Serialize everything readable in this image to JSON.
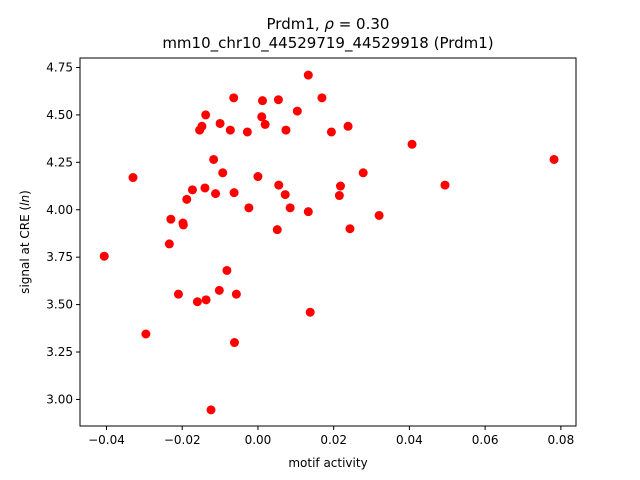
{
  "chart_data": {
    "type": "scatter",
    "title_line1_prefix": "Prdm1, ",
    "title_rho_symbol": "ρ",
    "title_rho_suffix": " = 0.30",
    "title_line2": "mm10_chr10_44529719_44529918 (Prdm1)",
    "xlabel": "motif activity",
    "ylabel_prefix": "signal at CRE (",
    "ylabel_italic": "ln",
    "ylabel_suffix": ")",
    "xlim": [
      -0.047,
      0.084
    ],
    "ylim": [
      2.86,
      4.8
    ],
    "xticks": [
      -0.04,
      -0.02,
      0.0,
      0.02,
      0.04,
      0.06,
      0.08
    ],
    "xtick_labels": [
      "−0.04",
      "−0.02",
      "0.00",
      "0.02",
      "0.04",
      "0.06",
      "0.08"
    ],
    "yticks": [
      3.0,
      3.25,
      3.5,
      3.75,
      4.0,
      4.25,
      4.5,
      4.75
    ],
    "ytick_labels": [
      "3.00",
      "3.25",
      "3.50",
      "3.75",
      "4.00",
      "4.25",
      "4.50",
      "4.75"
    ],
    "marker_color": "#ff0000",
    "grid": false,
    "points": [
      {
        "x": -0.0406,
        "y": 3.755
      },
      {
        "x": -0.033,
        "y": 4.17
      },
      {
        "x": -0.0296,
        "y": 3.345
      },
      {
        "x": -0.0234,
        "y": 3.82
      },
      {
        "x": -0.023,
        "y": 3.95
      },
      {
        "x": -0.021,
        "y": 3.555
      },
      {
        "x": -0.0198,
        "y": 3.93
      },
      {
        "x": -0.0197,
        "y": 3.92
      },
      {
        "x": -0.0188,
        "y": 4.055
      },
      {
        "x": -0.0173,
        "y": 4.105
      },
      {
        "x": -0.016,
        "y": 3.515
      },
      {
        "x": -0.0154,
        "y": 4.42
      },
      {
        "x": -0.0148,
        "y": 4.44
      },
      {
        "x": -0.0138,
        "y": 4.5
      },
      {
        "x": -0.014,
        "y": 4.115
      },
      {
        "x": -0.0137,
        "y": 3.525
      },
      {
        "x": -0.0124,
        "y": 2.945
      },
      {
        "x": -0.0117,
        "y": 4.265
      },
      {
        "x": -0.0112,
        "y": 4.085
      },
      {
        "x": -0.0102,
        "y": 3.575
      },
      {
        "x": -0.01,
        "y": 4.455
      },
      {
        "x": -0.0093,
        "y": 4.195
      },
      {
        "x": -0.0082,
        "y": 3.68
      },
      {
        "x": -0.0073,
        "y": 4.42
      },
      {
        "x": -0.0064,
        "y": 4.59
      },
      {
        "x": -0.0063,
        "y": 4.09
      },
      {
        "x": -0.0062,
        "y": 3.3
      },
      {
        "x": -0.0057,
        "y": 3.555
      },
      {
        "x": -0.0028,
        "y": 4.41
      },
      {
        "x": -0.0024,
        "y": 4.01
      },
      {
        "x": 0.0,
        "y": 4.175
      },
      {
        "x": 0.001,
        "y": 4.49
      },
      {
        "x": 0.0012,
        "y": 4.575
      },
      {
        "x": 0.0019,
        "y": 4.45
      },
      {
        "x": 0.0051,
        "y": 3.895
      },
      {
        "x": 0.0054,
        "y": 4.58
      },
      {
        "x": 0.0055,
        "y": 4.13
      },
      {
        "x": 0.0072,
        "y": 4.08
      },
      {
        "x": 0.0074,
        "y": 4.42
      },
      {
        "x": 0.0085,
        "y": 4.01
      },
      {
        "x": 0.0104,
        "y": 4.52
      },
      {
        "x": 0.0133,
        "y": 4.71
      },
      {
        "x": 0.0133,
        "y": 3.99
      },
      {
        "x": 0.0138,
        "y": 3.46
      },
      {
        "x": 0.0169,
        "y": 4.59
      },
      {
        "x": 0.0194,
        "y": 4.41
      },
      {
        "x": 0.0215,
        "y": 4.075
      },
      {
        "x": 0.0218,
        "y": 4.125
      },
      {
        "x": 0.0238,
        "y": 4.44
      },
      {
        "x": 0.0243,
        "y": 3.9
      },
      {
        "x": 0.0278,
        "y": 4.195
      },
      {
        "x": 0.032,
        "y": 3.97
      },
      {
        "x": 0.0407,
        "y": 4.345
      },
      {
        "x": 0.0494,
        "y": 4.13
      },
      {
        "x": 0.0782,
        "y": 4.265
      }
    ]
  }
}
